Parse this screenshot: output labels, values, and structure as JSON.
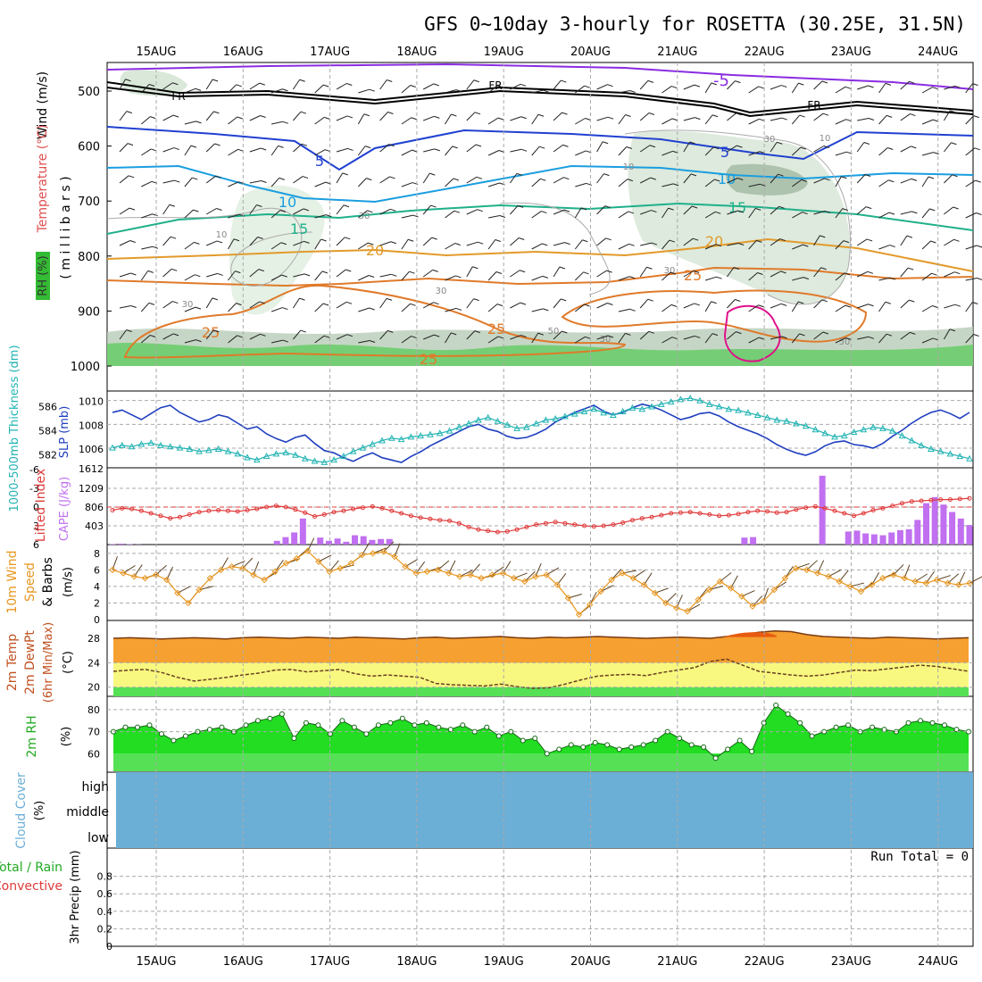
{
  "title": "GFS 0~10day 3-hourly for ROSETTA (30.25E, 31.5N)",
  "dates": [
    "15AUG",
    "16AUG",
    "17AUG",
    "18AUG",
    "19AUG",
    "20AUG",
    "21AUG",
    "22AUG",
    "23AUG",
    "24AUG"
  ],
  "colors": {
    "grid": "#aaaaaa",
    "slp": "#1f3fbf",
    "thickness": "#22b3b3",
    "lifted": "#e03a3a",
    "cape": "#c070f0",
    "wind": "#e8961e",
    "temp_fill": "#f5a030",
    "temp_hot": "#e85a10",
    "dew_fill": "#f8f880",
    "dew_low": "#55e055",
    "rh_fill": "#22dd22",
    "rh_dark": "#119911",
    "rh_base": "#55e055",
    "cloud": "#6baed6",
    "rh_label_bg": "#33bb33"
  },
  "panels": {
    "upper": {
      "label_wind": "Wind (m/s)",
      "label_temp": "Temperature (°C)",
      "label_rh": "RH (%)",
      "label_mb": "( m i l l i b a r s )",
      "yticks": [
        500,
        600,
        700,
        800,
        900,
        1000
      ],
      "contours": {
        "neg5": "-5",
        "fr": "FR",
        "pos5": "5",
        "t10": "10",
        "t15": "15",
        "t20": "20",
        "t25": "25",
        "rh10": "10",
        "rh30": "30",
        "rh50": "50"
      }
    },
    "slp": {
      "label_thick": "1000-500mb Thickness (dm)",
      "label_slp": "SLP (mb)",
      "thick_ticks": [
        "586",
        "584",
        "582"
      ],
      "slp_ticks": [
        "1010",
        "1008",
        "1006"
      ],
      "corner": "1612"
    },
    "li": {
      "label_li": "Lifted Index",
      "label_cape": "CAPE (J/kg)",
      "li_ticks": [
        "-6",
        "-3",
        "0",
        "3",
        "6"
      ],
      "cape_ticks": [
        "1209",
        "806",
        "403"
      ],
      "corner": "1612"
    },
    "wind": {
      "label_title": "10m Wind",
      "label_speed": "Speed",
      "label_barbs": "& Barbs",
      "label_unit": "(m/s)",
      "ticks": [
        "8",
        "6",
        "4",
        "2",
        "0"
      ]
    },
    "temp": {
      "label_a": "2m Temp",
      "label_b": "2m DewPt",
      "label_c": "(6hr Min/Max)",
      "label_unit": "(°C)",
      "ticks": [
        "28",
        "24",
        "20"
      ]
    },
    "rh": {
      "label": "2m RH",
      "unit": "(%)",
      "ticks": [
        "80",
        "70",
        "60"
      ]
    },
    "cloud": {
      "label": "Cloud Cover",
      "unit": "(%)",
      "levels": [
        "high",
        "middle",
        "low"
      ]
    },
    "precip": {
      "label_total": "Total / Rain",
      "label_conv": "Convective",
      "label_y": "3hr Precip (mm)",
      "ticks": [
        "0.8",
        "0.6",
        "0.4",
        "0.2",
        "0"
      ],
      "run_total": "Run Total = 0"
    }
  },
  "chart_data": {
    "type": "line",
    "x": [
      "15AUG",
      "16AUG",
      "17AUG",
      "18AUG",
      "19AUG",
      "20AUG",
      "21AUG",
      "22AUG",
      "23AUG",
      "24AUG"
    ],
    "steps_per_day": 8,
    "slp_mb": [
      1009.0,
      1009.2,
      1008.8,
      1008.4,
      1008.9,
      1009.4,
      1009.6,
      1009.0,
      1008.6,
      1008.2,
      1008.4,
      1008.8,
      1008.6,
      1008.1,
      1007.6,
      1007.8,
      1007.2,
      1006.8,
      1006.5,
      1006.9,
      1007.1,
      1006.4,
      1005.8,
      1005.6,
      1005.2,
      1004.9,
      1005.3,
      1005.6,
      1005.2,
      1005.0,
      1004.8,
      1005.3,
      1005.7,
      1006.2,
      1006.6,
      1007.0,
      1007.4,
      1007.8,
      1008.0,
      1007.6,
      1007.4,
      1007.0,
      1006.8,
      1006.9,
      1007.2,
      1007.6,
      1008.2,
      1008.6,
      1009.0,
      1009.3,
      1009.6,
      1009.1,
      1008.8,
      1009.0,
      1009.4,
      1009.7,
      1009.5,
      1009.2,
      1008.8,
      1008.4,
      1008.6,
      1008.9,
      1009.0,
      1008.7,
      1008.2,
      1007.8,
      1007.5,
      1007.2,
      1006.8,
      1006.3,
      1005.9,
      1005.6,
      1005.4,
      1005.7,
      1006.2,
      1006.5,
      1006.6,
      1006.3,
      1006.2,
      1006.0,
      1006.4,
      1007.0,
      1007.5,
      1008.1,
      1008.6,
      1009.0,
      1009.2,
      1008.9,
      1008.5,
      1009.0
    ],
    "thickness_dm": [
      582.6,
      582.8,
      582.7,
      582.9,
      583.0,
      582.8,
      582.7,
      582.6,
      582.5,
      582.3,
      582.4,
      582.5,
      582.3,
      582.1,
      581.8,
      581.6,
      581.9,
      582.1,
      582.2,
      582.0,
      581.7,
      581.5,
      581.4,
      581.6,
      581.9,
      582.3,
      582.6,
      582.9,
      583.2,
      583.4,
      583.3,
      583.5,
      583.6,
      583.7,
      583.8,
      584.0,
      584.3,
      584.6,
      584.9,
      585.1,
      584.8,
      584.5,
      584.2,
      584.3,
      584.6,
      584.9,
      585.0,
      585.2,
      585.4,
      585.6,
      585.8,
      585.5,
      585.3,
      585.6,
      585.9,
      585.8,
      586.0,
      586.2,
      586.4,
      586.6,
      586.7,
      586.5,
      586.2,
      586.0,
      585.8,
      585.7,
      585.5,
      585.3,
      585.1,
      584.9,
      584.8,
      584.6,
      584.4,
      584.1,
      583.8,
      583.5,
      583.6,
      583.9,
      584.1,
      584.3,
      584.2,
      584.0,
      583.6,
      583.2,
      582.8,
      582.5,
      582.3,
      582.1,
      581.9,
      581.7
    ],
    "lifted_index": [
      0.5,
      0.2,
      0.3,
      0.6,
      1.0,
      1.4,
      1.8,
      1.6,
      1.2,
      0.8,
      0.6,
      0.5,
      0.6,
      0.7,
      0.5,
      0.3,
      0.0,
      -0.2,
      0.0,
      0.4,
      0.9,
      1.5,
      1.2,
      0.8,
      0.6,
      0.3,
      0.1,
      -0.1,
      0.2,
      0.6,
      1.0,
      1.4,
      1.7,
      1.9,
      2.1,
      2.2,
      2.6,
      3.2,
      3.6,
      3.8,
      4.0,
      3.9,
      3.6,
      3.2,
      2.8,
      2.6,
      2.4,
      2.6,
      2.8,
      3.0,
      3.1,
      3.0,
      2.8,
      2.5,
      2.1,
      1.8,
      1.6,
      1.3,
      1.0,
      0.9,
      0.8,
      1.0,
      1.2,
      1.4,
      1.3,
      1.1,
      0.8,
      0.6,
      0.7,
      0.9,
      0.8,
      0.4,
      0.1,
      -0.1,
      0.2,
      0.6,
      1.0,
      1.4,
      1.0,
      0.5,
      0.2,
      -0.2,
      -0.6,
      -0.9,
      -1.0,
      -1.1,
      -1.2,
      -1.2,
      -1.3,
      -1.4
    ],
    "cape_jkg": [
      10,
      20,
      10,
      5,
      0,
      0,
      0,
      0,
      0,
      0,
      0,
      0,
      0,
      0,
      0,
      0,
      0,
      0,
      0,
      80,
      160,
      260,
      560,
      0,
      150,
      80,
      130,
      60,
      200,
      180,
      100,
      120,
      120,
      0,
      0,
      0,
      0,
      0,
      0,
      0,
      0,
      0,
      0,
      0,
      0,
      0,
      0,
      0,
      0,
      0,
      0,
      0,
      0,
      0,
      0,
      0,
      0,
      0,
      0,
      0,
      0,
      0,
      0,
      0,
      0,
      0,
      0,
      0,
      0,
      0,
      0,
      0,
      0,
      150,
      160,
      0,
      0,
      0,
      0,
      0,
      0,
      0,
      1480,
      0,
      0,
      280,
      300,
      240,
      220,
      200,
      260,
      310,
      330,
      530,
      890,
      1020,
      860,
      700,
      560,
      420
    ],
    "wind_speed_ms": [
      6.0,
      5.6,
      5.2,
      5.0,
      5.4,
      4.8,
      3.2,
      2.0,
      3.6,
      5.0,
      6.0,
      6.4,
      6.2,
      5.4,
      4.8,
      5.8,
      6.8,
      7.4,
      8.3,
      7.0,
      5.8,
      6.2,
      6.8,
      7.8,
      8.0,
      8.2,
      7.6,
      6.4,
      5.6,
      5.8,
      6.0,
      5.6,
      5.2,
      5.4,
      5.0,
      5.4,
      5.6,
      5.0,
      4.6,
      5.2,
      5.4,
      4.2,
      2.6,
      0.6,
      1.8,
      3.4,
      4.8,
      5.6,
      5.0,
      4.2,
      3.2,
      2.0,
      1.4,
      1.0,
      2.4,
      3.6,
      4.6,
      3.8,
      2.8,
      1.6,
      2.2,
      3.6,
      5.0,
      6.2,
      6.0,
      5.6,
      5.2,
      4.6,
      4.0,
      3.4,
      4.2,
      5.0,
      5.4,
      5.0,
      4.6,
      4.4,
      4.8,
      4.4,
      4.2,
      4.4
    ],
    "temp_2m_c": [
      28.0,
      28.1,
      28.0,
      27.9,
      28.0,
      28.1,
      28.0,
      27.9,
      28.1,
      28.2,
      28.1,
      28.0,
      28.2,
      28.1,
      28.0,
      28.2,
      28.1,
      28.0,
      27.9,
      28.1,
      28.2,
      28.0,
      28.1,
      28.2,
      28.3,
      28.1,
      28.0,
      28.2,
      28.1,
      28.2,
      28.3,
      28.2,
      28.1,
      28.0,
      28.1,
      28.2,
      28.1,
      28.0,
      28.3,
      28.6,
      29.0,
      29.2,
      29.1,
      28.6,
      28.3,
      28.2,
      28.1,
      28.0,
      28.2,
      28.1,
      28.0,
      27.9,
      28.0,
      28.1
    ],
    "dewpoint_2m_c": [
      22.6,
      22.8,
      22.9,
      22.4,
      21.6,
      21.0,
      21.3,
      21.6,
      22.0,
      22.3,
      22.8,
      22.9,
      22.5,
      22.7,
      22.9,
      22.2,
      21.8,
      22.0,
      21.8,
      21.6,
      20.6,
      20.4,
      20.3,
      20.2,
      20.5,
      20.1,
      19.8,
      19.9,
      20.5,
      21.2,
      21.8,
      22.0,
      22.1,
      21.9,
      22.4,
      22.8,
      23.2,
      24.2,
      24.6,
      23.6,
      22.6,
      22.3,
      22.0,
      21.8,
      22.0,
      22.4,
      22.8,
      22.7,
      23.0,
      23.3,
      23.6,
      23.4,
      23.0,
      22.6
    ],
    "rh_2m_pct": [
      70,
      72,
      72,
      73,
      69,
      66,
      68,
      70,
      71,
      72,
      70,
      73,
      75,
      76,
      78,
      67,
      74,
      73,
      69,
      75,
      72,
      69,
      73,
      74,
      76,
      73,
      74,
      72,
      71,
      73,
      70,
      72,
      68,
      70,
      66,
      67,
      60,
      62,
      64,
      63,
      65,
      64,
      62,
      63,
      64,
      66,
      70,
      67,
      64,
      63,
      58,
      62,
      66,
      61,
      74,
      82,
      78,
      74,
      68,
      70,
      72,
      73,
      70,
      72,
      71,
      70,
      74,
      75,
      74,
      73,
      71,
      70
    ],
    "cloud_cover_pct": {
      "high": 100,
      "middle": 100,
      "low": 100
    },
    "precip_3hr_mm": [],
    "precip_ylim": [
      0,
      1.0
    ]
  }
}
